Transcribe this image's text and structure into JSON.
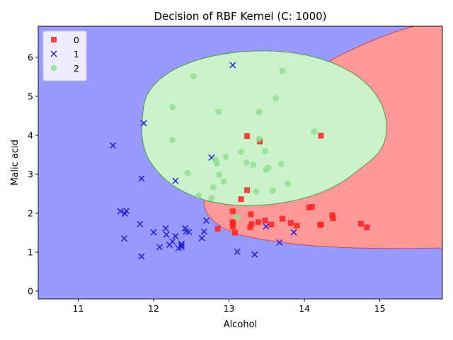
{
  "chart_data": {
    "type": "scatter",
    "title": "Decision of RBF Kernel (C: 1000)",
    "xlabel": "Alcohol",
    "ylabel": "Malic acid",
    "xlim": [
      10.47,
      15.83
    ],
    "ylim": [
      -0.2,
      6.8
    ],
    "xticks": [
      11,
      12,
      13,
      14,
      15
    ],
    "yticks": [
      0,
      1,
      2,
      3,
      4,
      5,
      6
    ],
    "grid": false,
    "legend_position": "top-left",
    "regions": {
      "background_class": "1",
      "colors": {
        "0": "#ff9999",
        "1": "#9999ff",
        "2": "#ccf2cc"
      }
    },
    "series": [
      {
        "name": "0",
        "marker": "square",
        "color": "#ff2020",
        "points": [
          [
            12.85,
            1.6
          ],
          [
            13.05,
            2.05
          ],
          [
            13.05,
            1.77
          ],
          [
            13.05,
            1.73
          ],
          [
            13.05,
            1.65
          ],
          [
            13.08,
            1.5
          ],
          [
            13.16,
            2.36
          ],
          [
            13.24,
            2.59
          ],
          [
            13.24,
            3.98
          ],
          [
            13.29,
            1.97
          ],
          [
            13.28,
            1.64
          ],
          [
            13.3,
            1.72
          ],
          [
            13.39,
            1.77
          ],
          [
            13.41,
            3.84
          ],
          [
            13.48,
            1.81
          ],
          [
            13.56,
            1.71
          ],
          [
            13.71,
            1.86
          ],
          [
            13.82,
            1.75
          ],
          [
            13.9,
            1.68
          ],
          [
            14.06,
            2.15
          ],
          [
            14.1,
            2.16
          ],
          [
            14.21,
            1.7
          ],
          [
            14.22,
            1.71
          ],
          [
            14.22,
            3.99
          ],
          [
            14.37,
            1.95
          ],
          [
            14.38,
            1.87
          ],
          [
            14.75,
            1.73
          ],
          [
            14.83,
            1.64
          ]
        ]
      },
      {
        "name": "1",
        "marker": "x",
        "color": "#2020e0",
        "points": [
          [
            11.46,
            3.74
          ],
          [
            11.56,
            2.05
          ],
          [
            11.61,
            1.35
          ],
          [
            11.62,
            1.99
          ],
          [
            11.64,
            2.06
          ],
          [
            11.82,
            1.72
          ],
          [
            11.84,
            2.89
          ],
          [
            11.84,
            0.89
          ],
          [
            11.87,
            4.31
          ],
          [
            12.0,
            1.51
          ],
          [
            12.08,
            1.13
          ],
          [
            12.16,
            1.61
          ],
          [
            12.17,
            1.45
          ],
          [
            12.21,
            1.19
          ],
          [
            12.25,
            1.27
          ],
          [
            12.29,
            2.83
          ],
          [
            12.29,
            1.41
          ],
          [
            12.33,
            1.1
          ],
          [
            12.37,
            1.13
          ],
          [
            12.37,
            1.17
          ],
          [
            12.37,
            1.21
          ],
          [
            12.42,
            1.61
          ],
          [
            12.43,
            1.53
          ],
          [
            12.47,
            1.52
          ],
          [
            12.64,
            1.36
          ],
          [
            12.67,
            1.53
          ],
          [
            12.7,
            1.81
          ],
          [
            12.77,
            3.43
          ],
          [
            13.05,
            5.8
          ],
          [
            13.11,
            1.01
          ],
          [
            13.34,
            0.94
          ],
          [
            13.49,
            1.66
          ],
          [
            13.67,
            1.25
          ],
          [
            13.86,
            1.51
          ]
        ]
      },
      {
        "name": "2",
        "marker": "circle",
        "color": "#90e090",
        "points": [
          [
            12.25,
            4.72
          ],
          [
            12.25,
            3.88
          ],
          [
            12.45,
            3.03
          ],
          [
            12.53,
            5.51
          ],
          [
            12.6,
            2.46
          ],
          [
            12.77,
            2.39
          ],
          [
            12.79,
            2.67
          ],
          [
            12.82,
            3.37
          ],
          [
            12.84,
            3.27
          ],
          [
            12.86,
            4.6
          ],
          [
            12.87,
            2.99
          ],
          [
            12.93,
            2.81
          ],
          [
            12.96,
            3.45
          ],
          [
            13.11,
            1.9
          ],
          [
            13.16,
            3.57
          ],
          [
            13.23,
            3.3
          ],
          [
            13.32,
            3.24
          ],
          [
            13.36,
            2.56
          ],
          [
            13.4,
            3.91
          ],
          [
            13.4,
            4.6
          ],
          [
            13.48,
            3.59
          ],
          [
            13.49,
            3.12
          ],
          [
            13.52,
            3.17
          ],
          [
            13.58,
            2.58
          ],
          [
            13.62,
            4.95
          ],
          [
            13.69,
            3.26
          ],
          [
            13.71,
            5.65
          ],
          [
            13.78,
            2.76
          ],
          [
            14.13,
            4.1
          ]
        ]
      }
    ]
  }
}
